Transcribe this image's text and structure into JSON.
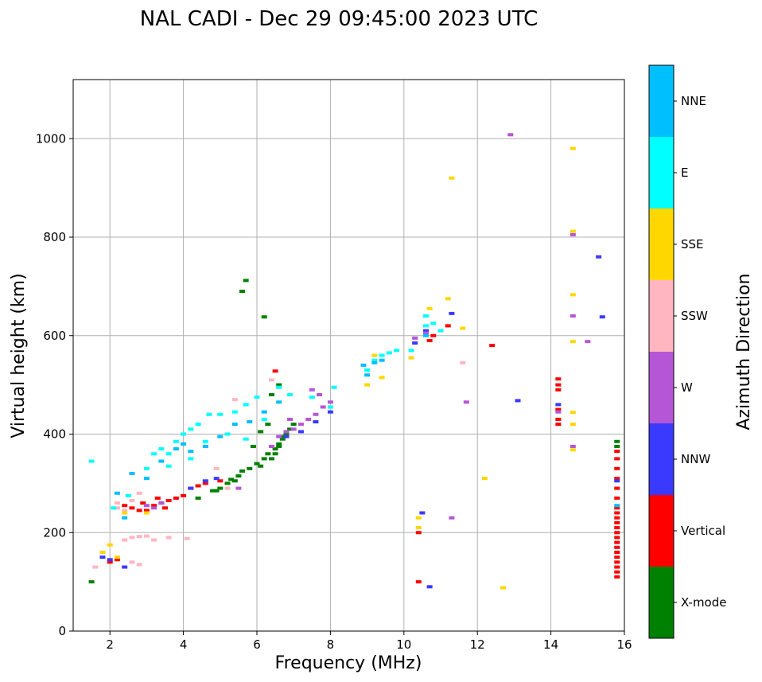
{
  "chart_data": {
    "type": "scatter",
    "title": "NAL CADI - Dec 29 09:45:00 2023 UTC",
    "xlabel": "Frequency (MHz)",
    "ylabel": "Virtual height (km)",
    "xlim": [
      1,
      16
    ],
    "ylim": [
      0,
      1120
    ],
    "xticks": [
      2,
      4,
      6,
      8,
      10,
      12,
      14,
      16
    ],
    "yticks": [
      0,
      200,
      400,
      600,
      800,
      1000
    ],
    "grid": true,
    "colorbar": {
      "label": "Azimuth Direction",
      "categories": [
        "X-mode",
        "Vertical",
        "NNW",
        "W",
        "SSW",
        "SSE",
        "E",
        "NNE"
      ],
      "colors": [
        "#008000",
        "#ff0000",
        "#3a3aff",
        "#b556d6",
        "#ffb6c1",
        "#ffd700",
        "#00ffff",
        "#00bfff"
      ]
    },
    "series": [
      {
        "name": "X-mode",
        "points": [
          [
            4.4,
            270
          ],
          [
            4.8,
            285
          ],
          [
            5.0,
            290
          ],
          [
            5.2,
            300
          ],
          [
            5.3,
            308
          ],
          [
            5.5,
            315
          ],
          [
            5.6,
            325
          ],
          [
            5.8,
            330
          ],
          [
            6.0,
            340
          ],
          [
            6.2,
            350
          ],
          [
            6.3,
            360
          ],
          [
            6.5,
            370
          ],
          [
            6.6,
            380
          ],
          [
            6.7,
            390
          ],
          [
            6.8,
            400
          ],
          [
            6.9,
            410
          ],
          [
            7.0,
            420
          ],
          [
            6.4,
            480
          ],
          [
            6.6,
            500
          ],
          [
            5.6,
            690
          ],
          [
            5.7,
            712
          ],
          [
            6.2,
            638
          ],
          [
            1.5,
            100
          ],
          [
            4.9,
            285
          ],
          [
            5.4,
            305
          ],
          [
            6.1,
            335
          ],
          [
            6.4,
            350
          ],
          [
            6.5,
            360
          ],
          [
            6.6,
            375
          ],
          [
            6.7,
            395
          ],
          [
            15.8,
            385
          ],
          [
            15.8,
            375
          ],
          [
            6.3,
            420
          ],
          [
            6.1,
            405
          ],
          [
            5.9,
            375
          ]
        ]
      },
      {
        "name": "Vertical",
        "points": [
          [
            2.0,
            140
          ],
          [
            2.2,
            145
          ],
          [
            2.4,
            255
          ],
          [
            2.6,
            250
          ],
          [
            2.8,
            245
          ],
          [
            3.0,
            245
          ],
          [
            3.2,
            255
          ],
          [
            3.4,
            260
          ],
          [
            3.6,
            265
          ],
          [
            3.8,
            270
          ],
          [
            4.0,
            275
          ],
          [
            4.2,
            290
          ],
          [
            4.4,
            295
          ],
          [
            4.6,
            300
          ],
          [
            5.0,
            305
          ],
          [
            10.4,
            200
          ],
          [
            10.4,
            100
          ],
          [
            10.7,
            590
          ],
          [
            10.8,
            600
          ],
          [
            11.2,
            620
          ],
          [
            12.4,
            580
          ],
          [
            14.2,
            420
          ],
          [
            14.2,
            430
          ],
          [
            14.2,
            450
          ],
          [
            14.2,
            490
          ],
          [
            14.2,
            500
          ],
          [
            14.2,
            512
          ],
          [
            15.8,
            270
          ],
          [
            15.8,
            290
          ],
          [
            15.8,
            310
          ],
          [
            15.8,
            330
          ],
          [
            15.8,
            350
          ],
          [
            15.8,
            365
          ],
          [
            15.8,
            110
          ],
          [
            15.8,
            120
          ],
          [
            15.8,
            130
          ],
          [
            15.8,
            140
          ],
          [
            15.8,
            150
          ],
          [
            15.8,
            160
          ],
          [
            15.8,
            170
          ],
          [
            15.8,
            180
          ],
          [
            15.8,
            190
          ],
          [
            15.8,
            200
          ],
          [
            15.8,
            210
          ],
          [
            15.8,
            220
          ],
          [
            15.8,
            230
          ],
          [
            15.8,
            240
          ],
          [
            15.8,
            250
          ],
          [
            6.5,
            528
          ],
          [
            3.5,
            250
          ],
          [
            3.3,
            270
          ],
          [
            2.9,
            260
          ]
        ]
      },
      {
        "name": "NNW",
        "points": [
          [
            1.8,
            150
          ],
          [
            2.0,
            145
          ],
          [
            2.4,
            130
          ],
          [
            4.2,
            290
          ],
          [
            4.6,
            305
          ],
          [
            4.9,
            310
          ],
          [
            6.8,
            395
          ],
          [
            7.2,
            405
          ],
          [
            7.6,
            425
          ],
          [
            8.0,
            445
          ],
          [
            10.5,
            240
          ],
          [
            10.7,
            90
          ],
          [
            10.3,
            585
          ],
          [
            10.6,
            610
          ],
          [
            11.3,
            645
          ],
          [
            13.1,
            468
          ],
          [
            15.3,
            760
          ],
          [
            15.4,
            638
          ],
          [
            14.2,
            460
          ],
          [
            15.8,
            305
          ]
        ]
      },
      {
        "name": "W",
        "points": [
          [
            3.0,
            255
          ],
          [
            3.2,
            250
          ],
          [
            3.4,
            260
          ],
          [
            5.5,
            290
          ],
          [
            6.4,
            375
          ],
          [
            6.6,
            395
          ],
          [
            6.8,
            405
          ],
          [
            7.0,
            410
          ],
          [
            7.2,
            420
          ],
          [
            7.4,
            430
          ],
          [
            7.6,
            440
          ],
          [
            7.8,
            455
          ],
          [
            8.0,
            465
          ],
          [
            10.3,
            595
          ],
          [
            10.6,
            605
          ],
          [
            11.3,
            230
          ],
          [
            11.7,
            465
          ],
          [
            12.9,
            1008
          ],
          [
            14.6,
            375
          ],
          [
            14.6,
            640
          ],
          [
            14.6,
            805
          ],
          [
            15.0,
            588
          ],
          [
            14.2,
            445
          ],
          [
            7.5,
            490
          ],
          [
            7.7,
            480
          ],
          [
            6.9,
            430
          ]
        ]
      },
      {
        "name": "SSW",
        "points": [
          [
            2.2,
            260
          ],
          [
            2.4,
            245
          ],
          [
            2.6,
            265
          ],
          [
            2.8,
            280
          ],
          [
            2.4,
            185
          ],
          [
            2.6,
            190
          ],
          [
            2.8,
            192
          ],
          [
            3.0,
            193
          ],
          [
            3.2,
            185
          ],
          [
            3.6,
            190
          ],
          [
            4.1,
            188
          ],
          [
            1.6,
            130
          ],
          [
            2.6,
            140
          ],
          [
            2.8,
            135
          ],
          [
            11.6,
            545
          ],
          [
            5.2,
            290
          ],
          [
            4.9,
            330
          ],
          [
            5.4,
            470
          ],
          [
            6.4,
            510
          ],
          [
            2.2,
            250
          ]
        ]
      },
      {
        "name": "SSE",
        "points": [
          [
            1.8,
            160
          ],
          [
            2.0,
            175
          ],
          [
            2.2,
            150
          ],
          [
            2.4,
            240
          ],
          [
            3.0,
            240
          ],
          [
            10.2,
            555
          ],
          [
            10.4,
            230
          ],
          [
            10.4,
            210
          ],
          [
            11.2,
            675
          ],
          [
            11.3,
            920
          ],
          [
            11.6,
            615
          ],
          [
            12.2,
            310
          ],
          [
            12.7,
            88
          ],
          [
            14.6,
            980
          ],
          [
            14.6,
            812
          ],
          [
            14.6,
            683
          ],
          [
            14.6,
            588
          ],
          [
            14.6,
            444
          ],
          [
            14.6,
            420
          ],
          [
            14.6,
            368
          ],
          [
            9.0,
            500
          ],
          [
            9.4,
            515
          ],
          [
            9.2,
            560
          ],
          [
            10.7,
            655
          ]
        ]
      },
      {
        "name": "E",
        "points": [
          [
            1.5,
            345
          ],
          [
            2.1,
            250
          ],
          [
            2.5,
            275
          ],
          [
            3.0,
            330
          ],
          [
            3.2,
            360
          ],
          [
            3.4,
            370
          ],
          [
            3.6,
            360
          ],
          [
            3.8,
            385
          ],
          [
            4.0,
            400
          ],
          [
            4.2,
            410
          ],
          [
            4.4,
            420
          ],
          [
            4.7,
            440
          ],
          [
            5.0,
            440
          ],
          [
            5.4,
            445
          ],
          [
            5.7,
            460
          ],
          [
            6.0,
            475
          ],
          [
            6.6,
            495
          ],
          [
            6.9,
            480
          ],
          [
            7.5,
            475
          ],
          [
            8.1,
            495
          ],
          [
            9.0,
            530
          ],
          [
            9.2,
            550
          ],
          [
            9.4,
            560
          ],
          [
            9.6,
            565
          ],
          [
            9.8,
            570
          ],
          [
            10.2,
            570
          ],
          [
            10.6,
            620
          ],
          [
            10.8,
            625
          ],
          [
            11.0,
            610
          ],
          [
            10.6,
            640
          ],
          [
            3.6,
            335
          ],
          [
            4.2,
            350
          ],
          [
            4.6,
            385
          ],
          [
            5.2,
            400
          ],
          [
            5.7,
            390
          ],
          [
            6.2,
            430
          ],
          [
            8.0,
            455
          ]
        ]
      },
      {
        "name": "NNE",
        "points": [
          [
            2.2,
            280
          ],
          [
            2.6,
            320
          ],
          [
            3.0,
            310
          ],
          [
            3.4,
            345
          ],
          [
            3.8,
            370
          ],
          [
            4.2,
            365
          ],
          [
            4.6,
            375
          ],
          [
            5.0,
            395
          ],
          [
            5.4,
            420
          ],
          [
            5.8,
            425
          ],
          [
            6.2,
            445
          ],
          [
            6.6,
            465
          ],
          [
            8.9,
            540
          ],
          [
            9.0,
            520
          ],
          [
            9.2,
            545
          ],
          [
            9.4,
            550
          ],
          [
            10.6,
            600
          ],
          [
            2.4,
            230
          ],
          [
            4.0,
            380
          ],
          [
            15.8,
            255
          ]
        ]
      }
    ]
  }
}
